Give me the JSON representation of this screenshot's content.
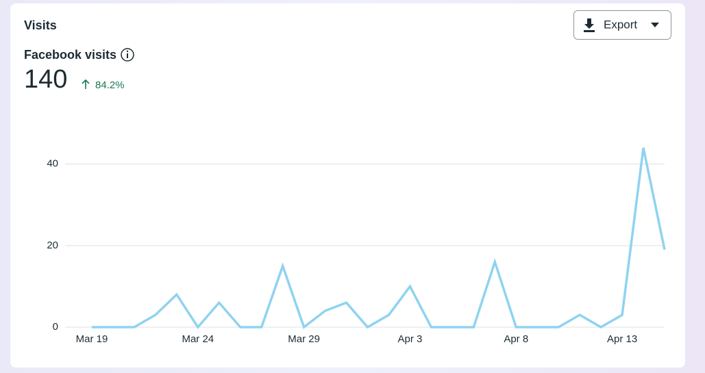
{
  "header": {
    "title": "Visits",
    "export": "Export"
  },
  "metric": {
    "label": "Facebook visits",
    "value": 140,
    "change": "84.2%"
  },
  "chart_data": {
    "type": "line",
    "categories": [
      "Mar 19",
      null,
      null,
      null,
      null,
      "Mar 24",
      null,
      null,
      null,
      null,
      "Mar 29",
      null,
      null,
      null,
      null,
      "Apr 3",
      null,
      null,
      null,
      null,
      "Apr 8",
      null,
      null,
      null,
      null,
      "Apr 13",
      null,
      null
    ],
    "values": [
      0,
      0,
      0,
      3,
      8,
      0,
      6,
      0,
      0,
      15,
      0,
      4,
      6,
      0,
      3,
      10,
      0,
      0,
      0,
      16,
      0,
      0,
      0,
      3,
      0,
      3,
      44,
      19
    ],
    "color": "#8fd3f0",
    "ylim": [
      0,
      46
    ],
    "yticks": [
      0,
      20,
      40
    ],
    "grid": true
  }
}
